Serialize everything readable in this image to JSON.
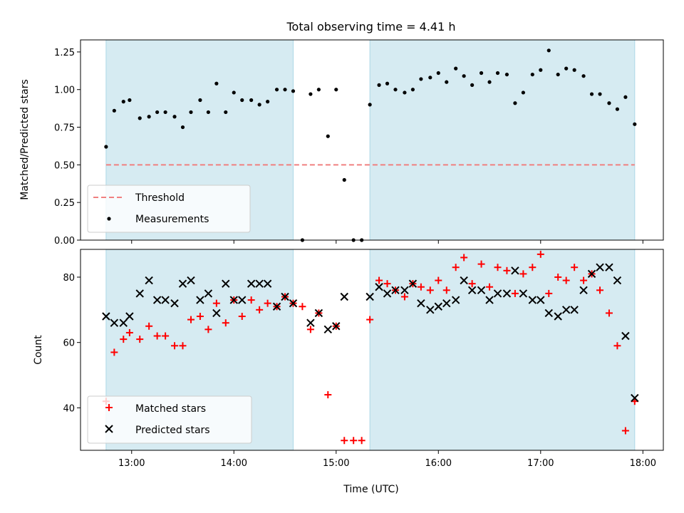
{
  "chart_data": [
    {
      "type": "scatter",
      "title": "Total observing time = 4.41 h",
      "xlabel": "",
      "ylabel": "Matched/Predicted stars",
      "ylim": [
        0,
        1.33
      ],
      "yticks": [
        "0.00",
        "0.25",
        "0.50",
        "0.75",
        "1.00",
        "1.25"
      ],
      "xlim_hours": [
        12.5,
        18.2
      ],
      "shaded_intervals_hours": [
        [
          12.75,
          14.58
        ],
        [
          15.33,
          17.92
        ]
      ],
      "shade_color": "#add8e6",
      "legend_placement": "lower-left",
      "threshold": {
        "name": "Threshold",
        "value": 0.5,
        "x_range_hours": [
          12.75,
          17.92
        ],
        "color": "#f08080",
        "style": "dashed"
      },
      "series": [
        {
          "name": "Measurements",
          "color": "#000000",
          "marker": "dot",
          "x_hours": [
            12.75,
            12.83,
            12.92,
            12.98,
            13.08,
            13.17,
            13.25,
            13.33,
            13.42,
            13.5,
            13.58,
            13.67,
            13.75,
            13.83,
            13.92,
            14.0,
            14.08,
            14.17,
            14.25,
            14.33,
            14.42,
            14.5,
            14.58,
            14.67,
            14.75,
            14.83,
            14.92,
            15.0,
            15.08,
            15.17,
            15.25,
            15.33,
            15.42,
            15.5,
            15.58,
            15.67,
            15.75,
            15.83,
            15.92,
            16.0,
            16.08,
            16.17,
            16.25,
            16.33,
            16.42,
            16.5,
            16.58,
            16.67,
            16.75,
            16.83,
            16.92,
            17.0,
            17.08,
            17.17,
            17.25,
            17.33,
            17.42,
            17.5,
            17.58,
            17.67,
            17.75,
            17.83,
            17.92
          ],
          "y": [
            0.62,
            0.86,
            0.92,
            0.93,
            0.81,
            0.82,
            0.85,
            0.85,
            0.82,
            0.75,
            0.85,
            0.93,
            0.85,
            1.04,
            0.85,
            0.98,
            0.93,
            0.93,
            0.9,
            0.92,
            1.0,
            1.0,
            0.99,
            0.0,
            0.97,
            1.0,
            0.69,
            1.0,
            0.4,
            0.0,
            0.0,
            0.9,
            1.03,
            1.04,
            1.0,
            0.98,
            1.0,
            1.07,
            1.08,
            1.11,
            1.05,
            1.14,
            1.09,
            1.03,
            1.11,
            1.05,
            1.11,
            1.1,
            0.91,
            0.98,
            1.1,
            1.13,
            1.26,
            1.1,
            1.14,
            1.13,
            1.09,
            0.97,
            0.97,
            0.91,
            0.87,
            0.95,
            0.77
          ]
        }
      ]
    },
    {
      "type": "scatter",
      "title": "",
      "xlabel": "Time (UTC)",
      "ylabel": "Count",
      "ylim": [
        27,
        88.5
      ],
      "yticks": [
        "40",
        "60",
        "80"
      ],
      "xticks": [
        "13:00",
        "14:00",
        "15:00",
        "16:00",
        "17:00",
        "18:00"
      ],
      "xlim_hours": [
        12.5,
        18.2
      ],
      "shaded_intervals_hours": [
        [
          12.75,
          14.58
        ],
        [
          15.33,
          17.92
        ]
      ],
      "shade_color": "#add8e6",
      "legend_placement": "lower-left",
      "series": [
        {
          "name": "Matched stars",
          "color": "#ff0000",
          "marker": "plus",
          "x_hours": [
            12.75,
            12.83,
            12.92,
            12.98,
            13.08,
            13.17,
            13.25,
            13.33,
            13.42,
            13.5,
            13.58,
            13.67,
            13.75,
            13.83,
            13.92,
            14.0,
            14.08,
            14.17,
            14.25,
            14.33,
            14.42,
            14.5,
            14.58,
            14.67,
            14.75,
            14.83,
            14.92,
            15.0,
            15.08,
            15.17,
            15.25,
            15.33,
            15.42,
            15.5,
            15.58,
            15.67,
            15.75,
            15.83,
            15.92,
            16.0,
            16.08,
            16.17,
            16.25,
            16.33,
            16.42,
            16.5,
            16.58,
            16.67,
            16.75,
            16.83,
            16.92,
            17.0,
            17.08,
            17.17,
            17.25,
            17.33,
            17.42,
            17.5,
            17.58,
            17.67,
            17.75,
            17.83,
            17.92
          ],
          "y": [
            42,
            57,
            61,
            63,
            61,
            65,
            62,
            62,
            59,
            59,
            67,
            68,
            64,
            72,
            66,
            73,
            68,
            73,
            70,
            72,
            71,
            74,
            72,
            71,
            64,
            69,
            44,
            65,
            30,
            30,
            30,
            67,
            79,
            78,
            76,
            74,
            78,
            77,
            76,
            79,
            76,
            83,
            86,
            78,
            84,
            77,
            83,
            82,
            75,
            81,
            83,
            87,
            75,
            80,
            79,
            83,
            79,
            81,
            76,
            69,
            59,
            33,
            42
          ],
          "note_marker_count": "as shown"
        },
        {
          "name": "Predicted stars",
          "color": "#000000",
          "marker": "x",
          "x_hours": [
            12.75,
            12.83,
            12.92,
            12.98,
            13.08,
            13.17,
            13.25,
            13.33,
            13.42,
            13.5,
            13.58,
            13.67,
            13.75,
            13.83,
            13.92,
            14.0,
            14.08,
            14.17,
            14.25,
            14.33,
            14.42,
            14.5,
            14.58,
            14.75,
            14.83,
            14.92,
            15.0,
            15.08,
            15.33,
            15.42,
            15.5,
            15.58,
            15.67,
            15.75,
            15.83,
            15.92,
            16.0,
            16.08,
            16.17,
            16.25,
            16.33,
            16.42,
            16.5,
            16.58,
            16.67,
            16.75,
            16.83,
            16.92,
            17.0,
            17.08,
            17.17,
            17.25,
            17.33,
            17.42,
            17.5,
            17.58,
            17.67,
            17.75,
            17.83,
            17.92
          ],
          "y": [
            68,
            66,
            66,
            68,
            75,
            79,
            73,
            73,
            72,
            78,
            79,
            73,
            75,
            69,
            78,
            73,
            73,
            78,
            78,
            78,
            71,
            74,
            72,
            66,
            69,
            64,
            65,
            74,
            74,
            77,
            75,
            76,
            76,
            78,
            72,
            70,
            71,
            72,
            73,
            79,
            76,
            76,
            73,
            75,
            75,
            82,
            75,
            73,
            73,
            69,
            68,
            70,
            70,
            76,
            81,
            83,
            83,
            79,
            62,
            43
          ]
        }
      ]
    }
  ]
}
